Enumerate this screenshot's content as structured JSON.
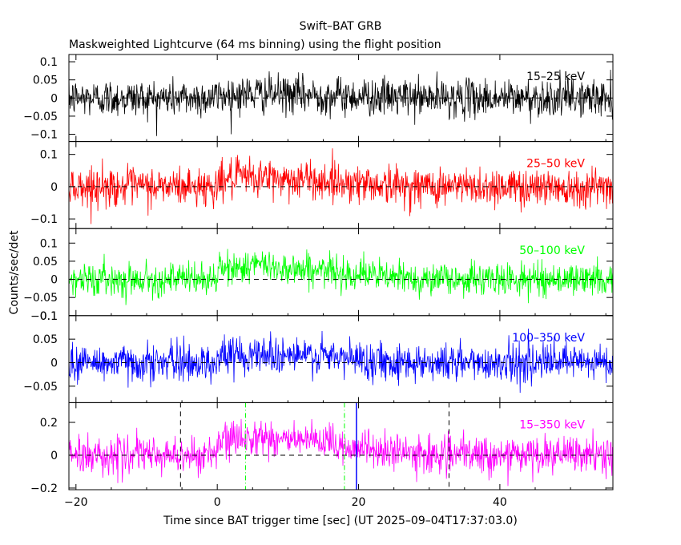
{
  "chart_data": {
    "type": "line",
    "title": "Swift–BAT GRB",
    "subtitle": "Maskweighted Lightcurve (64 ms binning) using the flight position",
    "xlabel": "Time since BAT trigger time [sec] (UT 2025–09–04T17:37:03.0)",
    "ylabel": "Counts/sec/det",
    "xlim": [
      -21,
      56
    ],
    "x_ticks": [
      -20,
      0,
      20,
      40
    ],
    "x_tick_labels": [
      "−20",
      "0",
      "20",
      "40"
    ],
    "bin_size_sec": 0.064,
    "burst_profile": {
      "noise_std_fraction_of_range": 0.13,
      "rise_start": 0,
      "peak_time": 5,
      "decay_end": 22
    },
    "panels": [
      {
        "band": "15–25 keV",
        "color": "#000000",
        "ylim": [
          -0.12,
          0.12
        ],
        "y_ticks": [
          -0.1,
          -0.05,
          0,
          0.05,
          0.1
        ],
        "y_tick_labels": [
          "−0.1",
          "−0.05",
          "0",
          "0.05",
          "0.1"
        ],
        "burst_amplitude": 0.012,
        "noise_std": 0.026
      },
      {
        "band": "25–50 keV",
        "color": "#ff0000",
        "ylim": [
          -0.13,
          0.14
        ],
        "y_ticks": [
          -0.1,
          0,
          0.1
        ],
        "y_tick_labels": [
          "−0.1",
          "0",
          "0.1"
        ],
        "burst_amplitude": 0.03,
        "noise_std": 0.03
      },
      {
        "band": "50–100 keV",
        "color": "#00ff00",
        "ylim": [
          -0.1,
          0.14
        ],
        "y_ticks": [
          -0.1,
          -0.05,
          0,
          0.05,
          0.1
        ],
        "y_tick_labels": [
          "−0.1",
          "−0.05",
          "0",
          "0.05",
          "0.1"
        ],
        "burst_amplitude": 0.04,
        "noise_std": 0.022
      },
      {
        "band": "100–350 keV",
        "color": "#0000ff",
        "ylim": [
          -0.085,
          0.1
        ],
        "y_ticks": [
          -0.05,
          0,
          0.05,
          0.1
        ],
        "y_tick_labels": [
          "−0.05",
          "0",
          "0.05",
          "0.1"
        ],
        "burst_amplitude": 0.02,
        "noise_std": 0.02
      },
      {
        "band": "15–350 keV",
        "color": "#ff00ff",
        "ylim": [
          -0.21,
          0.32
        ],
        "y_ticks": [
          -0.2,
          0,
          0.2
        ],
        "y_tick_labels": [
          "−0.2",
          "0",
          "0.2"
        ],
        "burst_amplitude": 0.12,
        "noise_std": 0.055
      }
    ],
    "markers": [
      {
        "x": -5.2,
        "style": "dashed",
        "color": "#000000",
        "panel": 5
      },
      {
        "x": 4.0,
        "style": "dashdot",
        "color": "#00ff00",
        "panel": 5
      },
      {
        "x": 18.0,
        "style": "dashdot",
        "color": "#00ff00",
        "panel": 5
      },
      {
        "x": 19.7,
        "style": "solid",
        "color": "#0000ff",
        "panel": 5
      },
      {
        "x": 32.8,
        "style": "dashed",
        "color": "#000000",
        "panel": 5
      }
    ],
    "zero_line_style": "dashed"
  }
}
